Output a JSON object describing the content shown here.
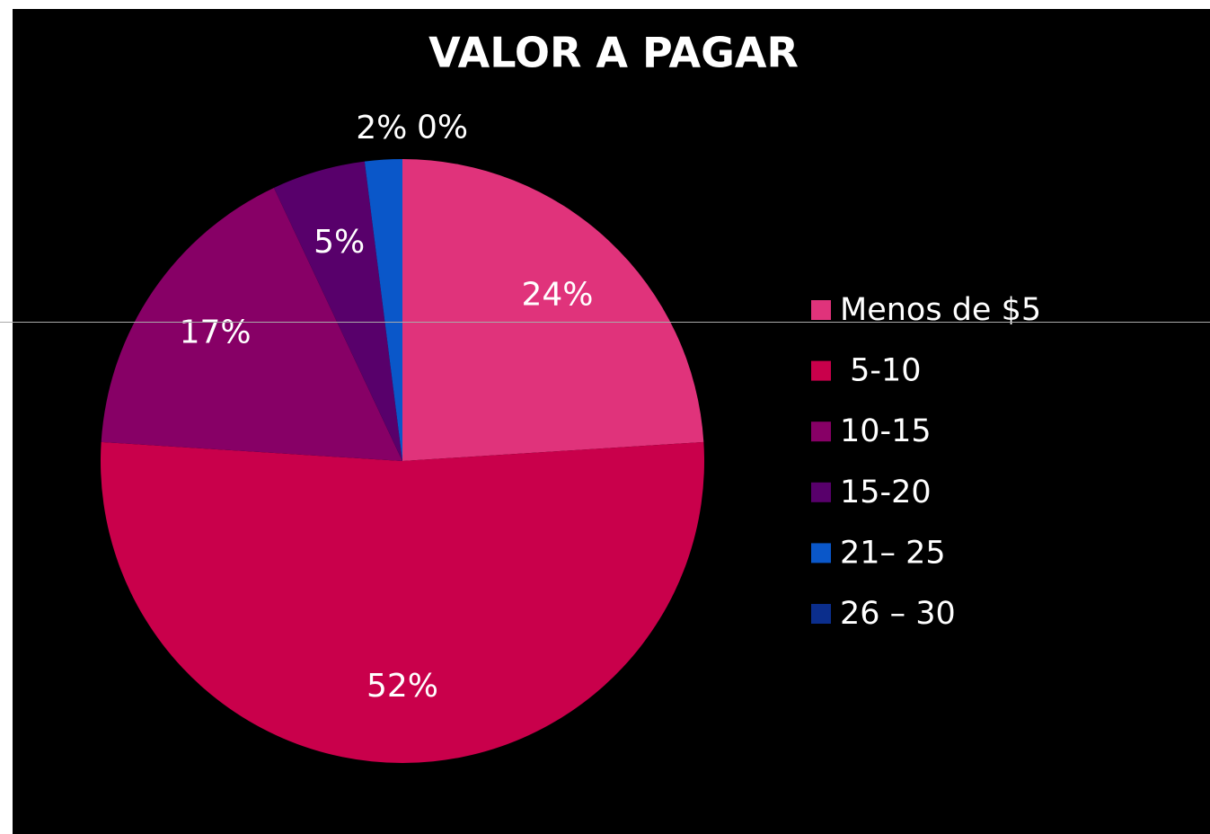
{
  "chart_data": {
    "type": "pie",
    "title": "VALOR A PAGAR",
    "categories": [
      "Menos de $5",
      " 5-10",
      "10-15",
      "15-20",
      "21– 25",
      "26 – 30"
    ],
    "values": [
      24,
      52,
      17,
      5,
      2,
      0
    ],
    "value_labels": [
      "24%",
      "52%",
      "17%",
      "5%",
      "2%",
      "0%"
    ],
    "colors": [
      "#e0337b",
      "#c9004b",
      "#870066",
      "#58006b",
      "#0a57c9",
      "#0b2e8c"
    ],
    "legend": "right"
  }
}
